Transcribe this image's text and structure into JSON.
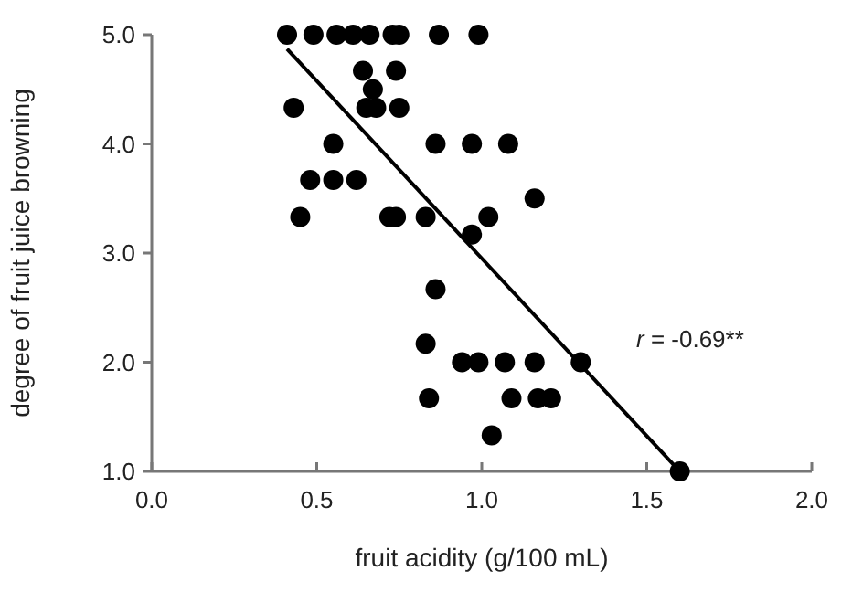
{
  "chart_data": {
    "type": "scatter",
    "xlabel": "fruit acidity (g/100 mL)",
    "ylabel": "degree of fruit juice browning",
    "xlim": [
      0,
      2
    ],
    "xticks": [
      {
        "value": 0,
        "label": "0.0"
      },
      0.5,
      {
        "value": 1,
        "label": "1.0"
      },
      1.5,
      {
        "value": 2,
        "label": "2.0"
      }
    ],
    "ylim": [
      1,
      5
    ],
    "yticks": [
      {
        "value": 1,
        "label": "1.0"
      },
      {
        "value": 2,
        "label": "2.0"
      },
      {
        "value": 3,
        "label": "3.0"
      },
      {
        "value": 4,
        "label": "4.0"
      },
      {
        "value": 5,
        "label": "5.0"
      }
    ],
    "grid": false,
    "marker": "circle",
    "annotations": [
      "r = -0.69**"
    ],
    "series": [
      {
        "color": "#000000",
        "x": [
          0.41,
          0.49,
          0.56,
          0.61,
          0.66,
          0.73,
          0.75,
          0.87,
          0.99,
          0.64,
          0.74,
          0.67,
          0.43,
          0.65,
          0.68,
          0.75,
          0.55,
          0.86,
          0.97,
          1.08,
          0.48,
          0.55,
          0.62,
          0.45,
          0.72,
          0.74,
          0.83,
          1.02,
          0.97,
          1.16,
          0.86,
          0.83,
          0.94,
          0.99,
          1.07,
          1.16,
          1.3,
          0.84,
          1.09,
          1.17,
          1.21,
          1.03,
          1.6
        ],
        "values": [
          5,
          5,
          5,
          5,
          5,
          5,
          5,
          5,
          5,
          4.67,
          4.67,
          4.5,
          4.33,
          4.33,
          4.33,
          4.33,
          4,
          4,
          4,
          4,
          3.67,
          3.67,
          3.67,
          3.33,
          3.33,
          3.33,
          3.33,
          3.33,
          3.17,
          3.5,
          2.67,
          2.17,
          2,
          2,
          2,
          2,
          2,
          1.67,
          1.67,
          1.67,
          1.67,
          1.33,
          1
        ]
      },
      {
        "type": "line",
        "color": "#000000",
        "marker": "none",
        "x": [
          0.41,
          1.6
        ],
        "values": [
          4.87,
          1
        ]
      }
    ]
  }
}
